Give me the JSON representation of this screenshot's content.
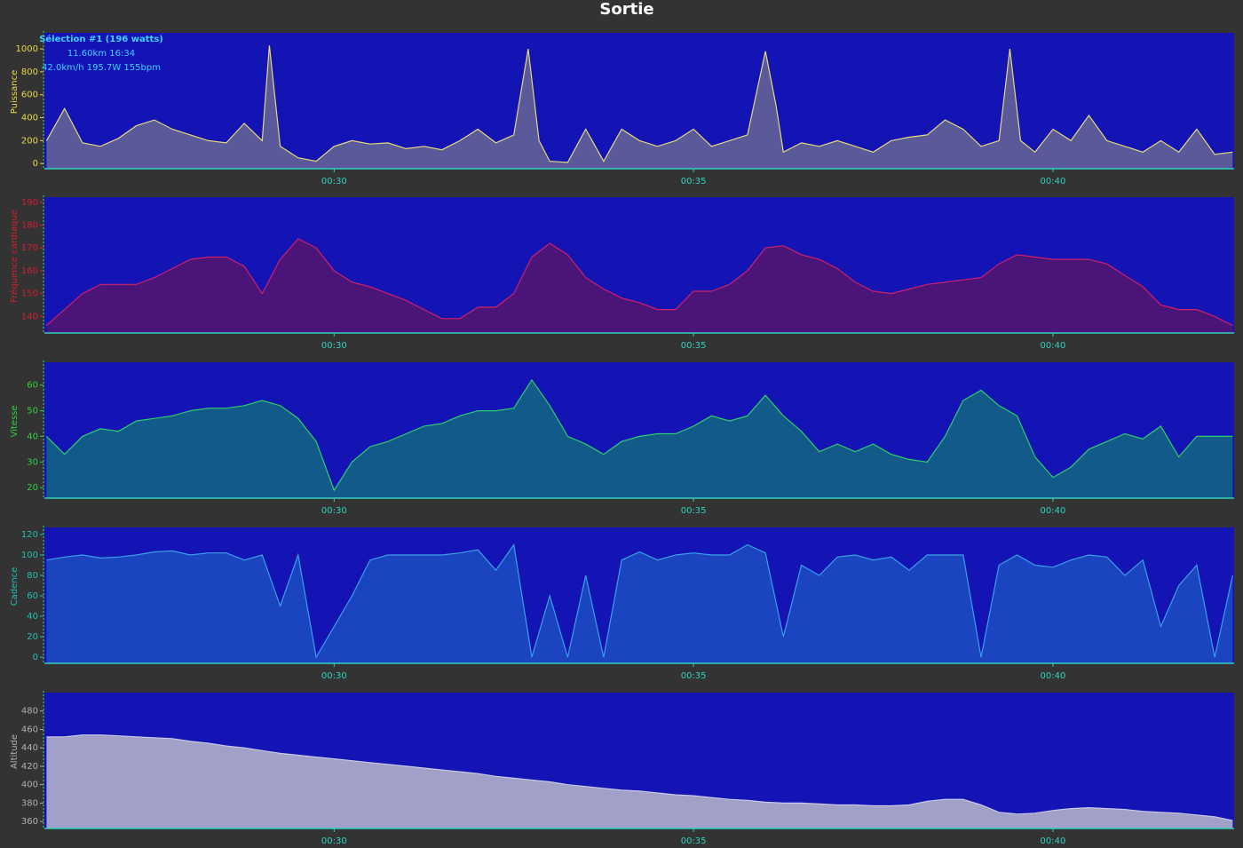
{
  "title": "Sortie",
  "chart_data": [
    {
      "type": "area",
      "ylabel": "Puissance",
      "label_color": "#e8d84a",
      "color": "#e6d87a",
      "fill": "#5a5a9a",
      "annotations": [
        "Sélection #1 (196 watts)",
        "11.60km 16:34",
        "42.0km/h 195.7W 155bpm"
      ],
      "x": [
        26,
        26.25,
        26.5,
        26.75,
        27,
        27.25,
        27.5,
        27.75,
        28,
        28.25,
        28.5,
        28.75,
        29,
        29.1,
        29.25,
        29.5,
        29.75,
        30,
        30.25,
        30.5,
        30.75,
        31,
        31.25,
        31.5,
        31.75,
        32,
        32.25,
        32.5,
        32.7,
        32.85,
        33,
        33.25,
        33.5,
        33.75,
        34,
        34.25,
        34.5,
        34.75,
        35,
        35.25,
        35.5,
        35.75,
        36,
        36.15,
        36.25,
        36.5,
        36.75,
        37,
        37.25,
        37.5,
        37.75,
        38,
        38.25,
        38.5,
        38.75,
        39,
        39.25,
        39.4,
        39.55,
        39.75,
        40,
        40.25,
        40.5,
        40.75,
        41,
        41.25,
        41.5,
        41.75,
        42,
        42.25,
        42.5
      ],
      "values": [
        200,
        480,
        180,
        150,
        220,
        330,
        380,
        300,
        250,
        200,
        180,
        350,
        200,
        1030,
        150,
        50,
        20,
        150,
        200,
        170,
        180,
        130,
        150,
        120,
        200,
        300,
        180,
        250,
        1000,
        200,
        20,
        10,
        300,
        20,
        300,
        200,
        150,
        200,
        300,
        150,
        200,
        250,
        980,
        500,
        100,
        180,
        150,
        200,
        150,
        100,
        200,
        230,
        250,
        380,
        300,
        150,
        200,
        1000,
        200,
        100,
        300,
        200,
        420,
        200,
        150,
        100,
        200,
        100,
        300,
        80,
        100
      ],
      "xlim": [
        25.97,
        42.52
      ],
      "xticks": [
        {
          "value": 30,
          "label": "00:30"
        },
        {
          "value": 35,
          "label": "00:35"
        },
        {
          "value": 40,
          "label": "00:40"
        }
      ],
      "ylim": [
        -45,
        1140
      ],
      "yticks": [
        0,
        200,
        400,
        600,
        800,
        1000
      ]
    },
    {
      "type": "area",
      "ylabel": "Fréquence cardiaque",
      "label_color": "#d02030",
      "color": "#d0206a",
      "fill": "#4a1478",
      "x": [
        26,
        26.25,
        26.5,
        26.75,
        27,
        27.25,
        27.5,
        27.75,
        28,
        28.25,
        28.5,
        28.75,
        29,
        29.25,
        29.5,
        29.75,
        30,
        30.25,
        30.5,
        30.75,
        31,
        31.25,
        31.5,
        31.75,
        32,
        32.25,
        32.5,
        32.75,
        33,
        33.25,
        33.5,
        33.75,
        34,
        34.25,
        34.5,
        34.75,
        35,
        35.25,
        35.5,
        35.75,
        36,
        36.25,
        36.5,
        36.75,
        37,
        37.25,
        37.5,
        37.75,
        38,
        38.25,
        38.5,
        38.75,
        39,
        39.25,
        39.5,
        39.75,
        40,
        40.25,
        40.5,
        40.75,
        41,
        41.25,
        41.5,
        41.75,
        42,
        42.25,
        42.5
      ],
      "values": [
        136,
        143,
        150,
        154,
        154,
        154,
        157,
        161,
        165,
        166,
        166,
        162,
        150,
        165,
        174,
        170,
        160,
        155,
        153,
        150,
        147,
        143,
        139,
        139,
        144,
        144,
        150,
        166,
        172,
        167,
        157,
        152,
        148,
        146,
        143,
        143,
        151,
        151,
        154,
        160,
        170,
        171,
        167,
        165,
        161,
        155,
        151,
        150,
        152,
        154,
        155,
        156,
        157,
        163,
        167,
        166,
        165,
        165,
        165,
        163,
        158,
        153,
        145,
        143,
        143,
        140,
        136
      ],
      "xlim": [
        25.97,
        42.52
      ],
      "xticks": [
        {
          "value": 30,
          "label": "00:30"
        },
        {
          "value": 35,
          "label": "00:35"
        },
        {
          "value": 40,
          "label": "00:40"
        }
      ],
      "ylim": [
        132.7,
        192.3
      ],
      "yticks": [
        140,
        150,
        160,
        170,
        180,
        190
      ]
    },
    {
      "type": "area",
      "ylabel": "Vitesse",
      "label_color": "#30d040",
      "color": "#2ecf6a",
      "fill": "#125a8a",
      "x": [
        26,
        26.25,
        26.5,
        26.75,
        27,
        27.25,
        27.5,
        27.75,
        28,
        28.25,
        28.5,
        28.75,
        29,
        29.25,
        29.5,
        29.75,
        30,
        30.25,
        30.5,
        30.75,
        31,
        31.25,
        31.5,
        31.75,
        32,
        32.25,
        32.5,
        32.75,
        33,
        33.25,
        33.5,
        33.75,
        34,
        34.25,
        34.5,
        34.75,
        35,
        35.25,
        35.5,
        35.75,
        36,
        36.25,
        36.5,
        36.75,
        37,
        37.25,
        37.5,
        37.75,
        38,
        38.25,
        38.5,
        38.75,
        39,
        39.25,
        39.5,
        39.75,
        40,
        40.25,
        40.5,
        40.75,
        41,
        41.25,
        41.5,
        41.75,
        42,
        42.25,
        42.5
      ],
      "values": [
        40,
        33,
        40,
        43,
        42,
        46,
        47,
        48,
        50,
        51,
        51,
        52,
        54,
        52,
        47,
        38,
        19,
        30,
        36,
        38,
        41,
        44,
        45,
        48,
        50,
        50,
        51,
        62,
        52,
        40,
        37,
        33,
        38,
        40,
        41,
        41,
        44,
        48,
        46,
        48,
        56,
        48,
        42,
        34,
        37,
        34,
        37,
        33,
        31,
        30,
        40,
        54,
        58,
        52,
        48,
        32,
        24,
        28,
        35,
        38,
        41,
        39,
        44,
        32,
        40,
        40,
        40
      ],
      "xlim": [
        25.97,
        42.52
      ],
      "xticks": [
        {
          "value": 30,
          "label": "00:30"
        },
        {
          "value": 35,
          "label": "00:35"
        },
        {
          "value": 40,
          "label": "00:40"
        }
      ],
      "ylim": [
        15.9,
        68.9
      ],
      "yticks": [
        20,
        30,
        40,
        50,
        60
      ]
    },
    {
      "type": "area",
      "ylabel": "Cadence",
      "label_color": "#20c0b0",
      "color": "#3aa0e6",
      "fill": "#1a44c0",
      "x": [
        26,
        26.25,
        26.5,
        26.75,
        27,
        27.25,
        27.5,
        27.75,
        28,
        28.25,
        28.5,
        28.75,
        29,
        29.25,
        29.5,
        29.75,
        30,
        30.25,
        30.5,
        30.75,
        31,
        31.25,
        31.5,
        31.75,
        32,
        32.25,
        32.5,
        32.75,
        33,
        33.25,
        33.5,
        33.75,
        34,
        34.25,
        34.5,
        34.75,
        35,
        35.25,
        35.5,
        35.75,
        36,
        36.25,
        36.5,
        36.75,
        37,
        37.25,
        37.5,
        37.75,
        38,
        38.25,
        38.5,
        38.75,
        39,
        39.25,
        39.5,
        39.75,
        40,
        40.25,
        40.5,
        40.75,
        41,
        41.25,
        41.5,
        41.75,
        42,
        42.25,
        42.5
      ],
      "values": [
        95,
        98,
        100,
        97,
        98,
        100,
        103,
        104,
        100,
        102,
        102,
        95,
        100,
        50,
        100,
        0,
        30,
        60,
        95,
        100,
        100,
        100,
        100,
        102,
        105,
        85,
        110,
        0,
        60,
        0,
        80,
        0,
        95,
        103,
        95,
        100,
        102,
        100,
        100,
        110,
        102,
        20,
        90,
        80,
        98,
        100,
        95,
        98,
        85,
        100,
        100,
        100,
        0,
        90,
        100,
        90,
        88,
        95,
        100,
        98,
        80,
        95,
        30,
        70,
        90,
        0,
        80
      ],
      "xlim": [
        25.97,
        42.52
      ],
      "xticks": [
        {
          "value": 30,
          "label": "00:30"
        },
        {
          "value": 35,
          "label": "00:35"
        },
        {
          "value": 40,
          "label": "00:40"
        }
      ],
      "ylim": [
        -6,
        126.9
      ],
      "yticks": [
        0,
        20,
        40,
        60,
        80,
        100,
        120
      ]
    },
    {
      "type": "area",
      "ylabel": "Altitude",
      "label_color": "#b0b0b0",
      "color": "#c8c8e8",
      "fill": "#a0a0c8",
      "x": [
        26,
        26.25,
        26.5,
        26.75,
        27,
        27.25,
        27.5,
        27.75,
        28,
        28.25,
        28.5,
        28.75,
        29,
        29.25,
        29.5,
        29.75,
        30,
        30.25,
        30.5,
        30.75,
        31,
        31.25,
        31.5,
        31.75,
        32,
        32.25,
        32.5,
        32.75,
        33,
        33.25,
        33.5,
        33.75,
        34,
        34.25,
        34.5,
        34.75,
        35,
        35.25,
        35.5,
        35.75,
        36,
        36.25,
        36.5,
        36.75,
        37,
        37.25,
        37.5,
        37.75,
        38,
        38.25,
        38.5,
        38.75,
        39,
        39.25,
        39.5,
        39.75,
        40,
        40.25,
        40.5,
        40.75,
        41,
        41.25,
        41.5,
        41.75,
        42,
        42.25,
        42.5
      ],
      "values": [
        452,
        452,
        454,
        454,
        453,
        452,
        451,
        450,
        447,
        445,
        442,
        440,
        437,
        434,
        432,
        430,
        428,
        426,
        424,
        422,
        420,
        418,
        416,
        414,
        412,
        409,
        407,
        405,
        403,
        400,
        398,
        396,
        394,
        393,
        391,
        389,
        388,
        386,
        384,
        383,
        381,
        380,
        380,
        379,
        378,
        378,
        377,
        377,
        378,
        382,
        384,
        384,
        378,
        370,
        368,
        369,
        372,
        374,
        375,
        374,
        373,
        371,
        370,
        369,
        367,
        365,
        361
      ],
      "xlim": [
        25.97,
        42.52
      ],
      "xticks": [
        {
          "value": 30,
          "label": "00:30"
        },
        {
          "value": 35,
          "label": "00:35"
        },
        {
          "value": 40,
          "label": "00:40"
        }
      ],
      "ylim": [
        352.4,
        500
      ],
      "yticks": [
        360,
        380,
        400,
        420,
        440,
        460,
        480
      ]
    }
  ]
}
